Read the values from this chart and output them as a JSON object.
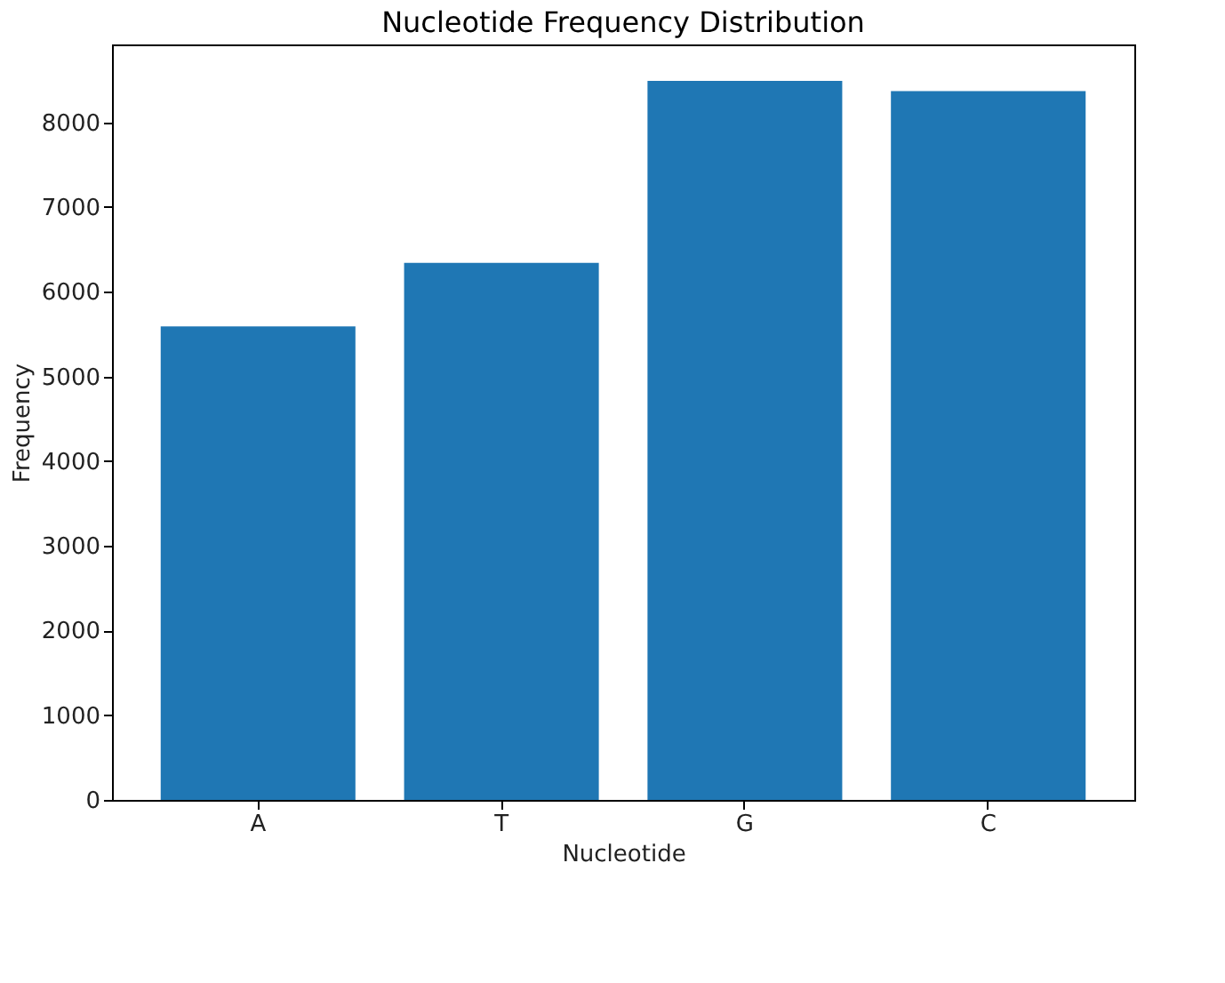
{
  "chart_data": {
    "type": "bar",
    "title": "Nucleotide Frequency Distribution",
    "xlabel": "Nucleotide",
    "ylabel": "Frequency",
    "categories": [
      "A",
      "T",
      "G",
      "C"
    ],
    "values": [
      5590,
      6340,
      8490,
      8370
    ],
    "color": "#1f77b4",
    "ylim": [
      0,
      8920
    ],
    "yticks": [
      0,
      1000,
      2000,
      3000,
      4000,
      5000,
      6000,
      7000,
      8000
    ],
    "grid": false
  }
}
